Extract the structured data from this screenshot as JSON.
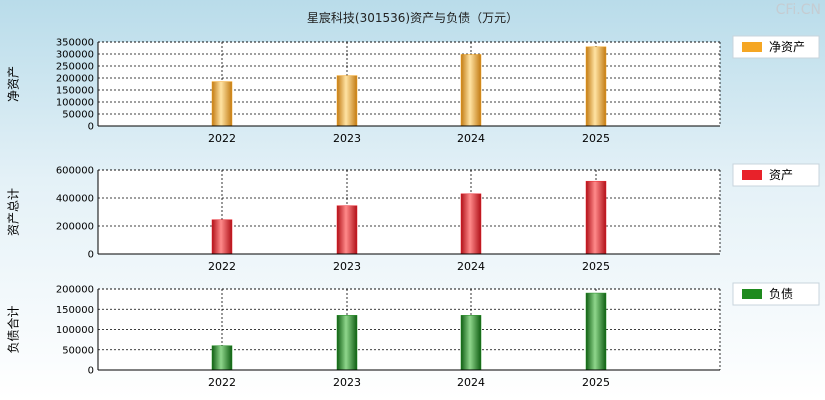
{
  "title": "星宸科技(301536)资产与负债（万元）",
  "watermark": "CFi.CN",
  "chart_data": [
    {
      "type": "bar",
      "ylabel": "净资产",
      "legend": "净资产",
      "color": "#f5a623",
      "categories": [
        "2022",
        "2023",
        "2024",
        "2025"
      ],
      "values": [
        185000,
        210000,
        298000,
        330000
      ],
      "ylim": [
        0,
        350000
      ],
      "yticks": [
        0,
        50000,
        100000,
        150000,
        200000,
        250000,
        300000,
        350000
      ],
      "legend_position": "right",
      "grid": true
    },
    {
      "type": "bar",
      "ylabel": "资产总计",
      "legend": "资产",
      "color": "#e8222a",
      "categories": [
        "2022",
        "2023",
        "2024",
        "2025"
      ],
      "values": [
        245000,
        345000,
        430000,
        520000
      ],
      "ylim": [
        0,
        600000
      ],
      "yticks": [
        0,
        200000,
        400000,
        600000
      ],
      "legend_position": "right",
      "grid": true
    },
    {
      "type": "bar",
      "ylabel": "负债合计",
      "legend": "负债",
      "color": "#1e8a1e",
      "categories": [
        "2022",
        "2023",
        "2024",
        "2025"
      ],
      "values": [
        60000,
        135000,
        135000,
        190000
      ],
      "ylim": [
        0,
        200000
      ],
      "yticks": [
        0,
        50000,
        100000,
        150000,
        200000
      ],
      "legend_position": "right",
      "grid": true
    }
  ]
}
